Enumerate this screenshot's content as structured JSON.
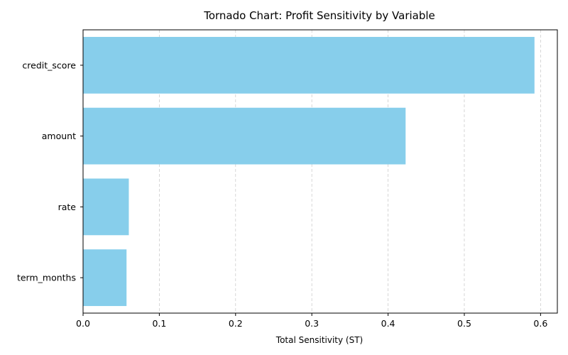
{
  "chart_data": {
    "type": "bar",
    "orientation": "horizontal",
    "title": "Tornado Chart: Profit Sensitivity by Variable",
    "xlabel": "Total Sensitivity (ST)",
    "ylabel": "",
    "categories": [
      "credit_score",
      "amount",
      "rate",
      "term_months"
    ],
    "values": [
      0.592,
      0.423,
      0.06,
      0.057
    ],
    "xlim": [
      0,
      0.622
    ],
    "xticks": [
      0.0,
      0.1,
      0.2,
      0.3,
      0.4,
      0.5,
      0.6
    ],
    "xtick_labels": [
      "0.0",
      "0.1",
      "0.2",
      "0.3",
      "0.4",
      "0.5",
      "0.6"
    ],
    "grid": "x-dashed",
    "bar_color": "#87ceeb",
    "grid_color": "#cccccc"
  }
}
